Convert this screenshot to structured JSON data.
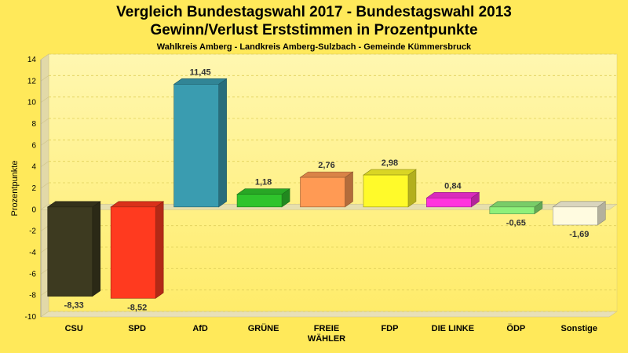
{
  "chart_data": {
    "type": "bar",
    "title": "Vergleich Bundestagswahl 2017 - Bundestagswahl 2013",
    "subtitle_line": "Gewinn/Verlust Erststimmen in Prozentpunkte",
    "caption": "Wahlkreis Amberg - Landkreis Amberg-Sulzbach - Gemeinde Kümmersbruck",
    "ylabel": "Prozentpunkte",
    "xlabel": "",
    "ylim": [
      -10,
      14
    ],
    "yticks": [
      14,
      12,
      10,
      8,
      6,
      4,
      2,
      0,
      -2,
      -4,
      -6,
      -8,
      -10
    ],
    "grid": true,
    "categories": [
      [
        "CSU"
      ],
      [
        "SPD"
      ],
      [
        "AfD"
      ],
      [
        "GRÜNE"
      ],
      [
        "FREIE",
        "WÄHLER"
      ],
      [
        "FDP"
      ],
      [
        "DIE LINKE"
      ],
      [
        "ÖDP"
      ],
      [
        "Sonstige"
      ]
    ],
    "values": [
      -8.33,
      -8.52,
      11.45,
      1.18,
      2.76,
      2.98,
      0.84,
      -0.65,
      -1.69
    ],
    "value_labels": [
      "-8,33",
      "-8,52",
      "11,45",
      "1,18",
      "2,76",
      "2,98",
      "0,84",
      "-0,65",
      "-1,69"
    ],
    "colors": [
      "#3d3a20",
      "#ff3a1f",
      "#3a9cb0",
      "#2fc42c",
      "#ff9a54",
      "#fffa2a",
      "#ff33dd",
      "#8ef07a",
      "#fffbe0"
    ]
  }
}
